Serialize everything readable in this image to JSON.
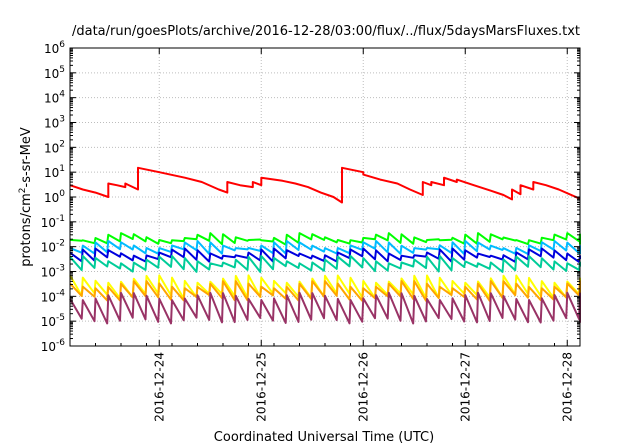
{
  "chart_data": {
    "type": "line",
    "title": "/data/run/goesPlots/archive/2016-12-28/03:00/flux/../flux/5daysMarsFluxes.txt",
    "xlabel": "Coordinated Universal Time (UTC)",
    "ylabel": "protons/cm²-s-sr-MeV",
    "ylabel_parts": {
      "pre": "protons/cm",
      "sup": "2",
      "post": "-s-sr-MeV"
    },
    "y_scale": "log",
    "ylim": [
      1e-06,
      1000000.0
    ],
    "y_ticks": [
      {
        "base": "10",
        "exp": "-6"
      },
      {
        "base": "10",
        "exp": "-5"
      },
      {
        "base": "10",
        "exp": "-4"
      },
      {
        "base": "10",
        "exp": "-3"
      },
      {
        "base": "10",
        "exp": "-2"
      },
      {
        "base": "10",
        "exp": "-1"
      },
      {
        "base": "10",
        "exp": "0"
      },
      {
        "base": "10",
        "exp": "1"
      },
      {
        "base": "10",
        "exp": "2"
      },
      {
        "base": "10",
        "exp": "3"
      },
      {
        "base": "10",
        "exp": "4"
      },
      {
        "base": "10",
        "exp": "5"
      },
      {
        "base": "10",
        "exp": "6"
      }
    ],
    "xlim": [
      "2016-12-23T03:00",
      "2016-12-28T03:00"
    ],
    "x_ticks": [
      "2016-12-24",
      "2016-12-25",
      "2016-12-26",
      "2016-12-27",
      "2016-12-28"
    ],
    "grid": true,
    "series": [
      {
        "color": "#ff0000",
        "x": [
          "2016-12-23T03:00",
          "2016-12-23T06:00",
          "2016-12-23T09:00",
          "2016-12-23T12:00",
          "2016-12-23T12:00",
          "2016-12-23T14:00",
          "2016-12-23T16:00",
          "2016-12-23T16:00",
          "2016-12-23T19:00",
          "2016-12-23T19:00",
          "2016-12-24T00:00",
          "2016-12-24T06:00",
          "2016-12-24T10:00",
          "2016-12-24T14:00",
          "2016-12-24T16:00",
          "2016-12-24T16:00",
          "2016-12-24T19:00",
          "2016-12-24T22:00",
          "2016-12-24T22:00",
          "2016-12-25T00:00",
          "2016-12-25T00:00",
          "2016-12-25T05:00",
          "2016-12-25T08:00",
          "2016-12-25T11:00",
          "2016-12-25T14:00",
          "2016-12-25T17:00",
          "2016-12-25T19:00",
          "2016-12-25T19:00",
          "2016-12-26T00:00",
          "2016-12-26T00:00",
          "2016-12-26T04:00",
          "2016-12-26T08:00",
          "2016-12-26T11:00",
          "2016-12-26T14:00",
          "2016-12-26T14:00",
          "2016-12-26T16:00",
          "2016-12-26T16:00",
          "2016-12-26T19:00",
          "2016-12-26T19:00",
          "2016-12-26T22:00",
          "2016-12-26T22:00",
          "2016-12-27T02:00",
          "2016-12-27T06:00",
          "2016-12-27T09:00",
          "2016-12-27T11:00",
          "2016-12-27T11:00",
          "2016-12-27T13:00",
          "2016-12-27T13:00",
          "2016-12-27T16:00",
          "2016-12-27T16:00",
          "2016-12-27T19:00",
          "2016-12-27T19:00",
          "2016-12-27T22:00",
          "2016-12-28T03:00"
        ],
        "y": [
          3,
          2,
          1.5,
          1,
          3.5,
          3,
          2.5,
          3.5,
          2,
          15,
          10,
          6,
          4,
          2,
          1.5,
          4,
          3,
          2.5,
          4,
          3,
          6,
          4.5,
          3.5,
          2.5,
          1.5,
          1,
          0.6,
          15,
          10,
          8,
          5,
          3.5,
          2,
          1.2,
          4,
          3,
          4,
          3,
          6,
          4,
          5,
          3,
          1.8,
          1.2,
          0.8,
          2,
          1.3,
          3,
          2,
          4,
          3,
          3,
          2,
          0.85
        ]
      },
      {
        "color": "#00ff00",
        "x": [
          "2016-12-23T03:00",
          "2016-12-28T03:00"
        ],
        "y": [
          0.015,
          0.025
        ],
        "sawtooth": true
      },
      {
        "color": "#00bbff",
        "x": [
          "2016-12-23T03:00",
          "2016-12-28T03:00"
        ],
        "y": [
          0.006,
          0.012
        ],
        "sawtooth": true
      },
      {
        "color": "#0000dd",
        "x": [
          "2016-12-23T03:00",
          "2016-12-28T03:00"
        ],
        "y": [
          0.003,
          0.006
        ],
        "sawtooth": true
      },
      {
        "color": "#00cc99",
        "x": [
          "2016-12-23T03:00",
          "2016-12-28T03:00"
        ],
        "y": [
          0.0012,
          0.003
        ],
        "sawtooth": true
      },
      {
        "color": "#ffff00",
        "x": [
          "2016-12-23T03:00",
          "2016-12-28T03:00"
        ],
        "y": [
          0.0001,
          0.0005
        ],
        "sawtooth": true
      },
      {
        "color": "#ffa500",
        "x": [
          "2016-12-23T03:00",
          "2016-12-28T03:00"
        ],
        "y": [
          8e-05,
          0.0003
        ],
        "sawtooth": true
      },
      {
        "color": "#993366",
        "x": [
          "2016-12-23T03:00",
          "2016-12-28T03:00"
        ],
        "y": [
          1e-05,
          0.0001
        ],
        "sawtooth": true
      }
    ]
  }
}
